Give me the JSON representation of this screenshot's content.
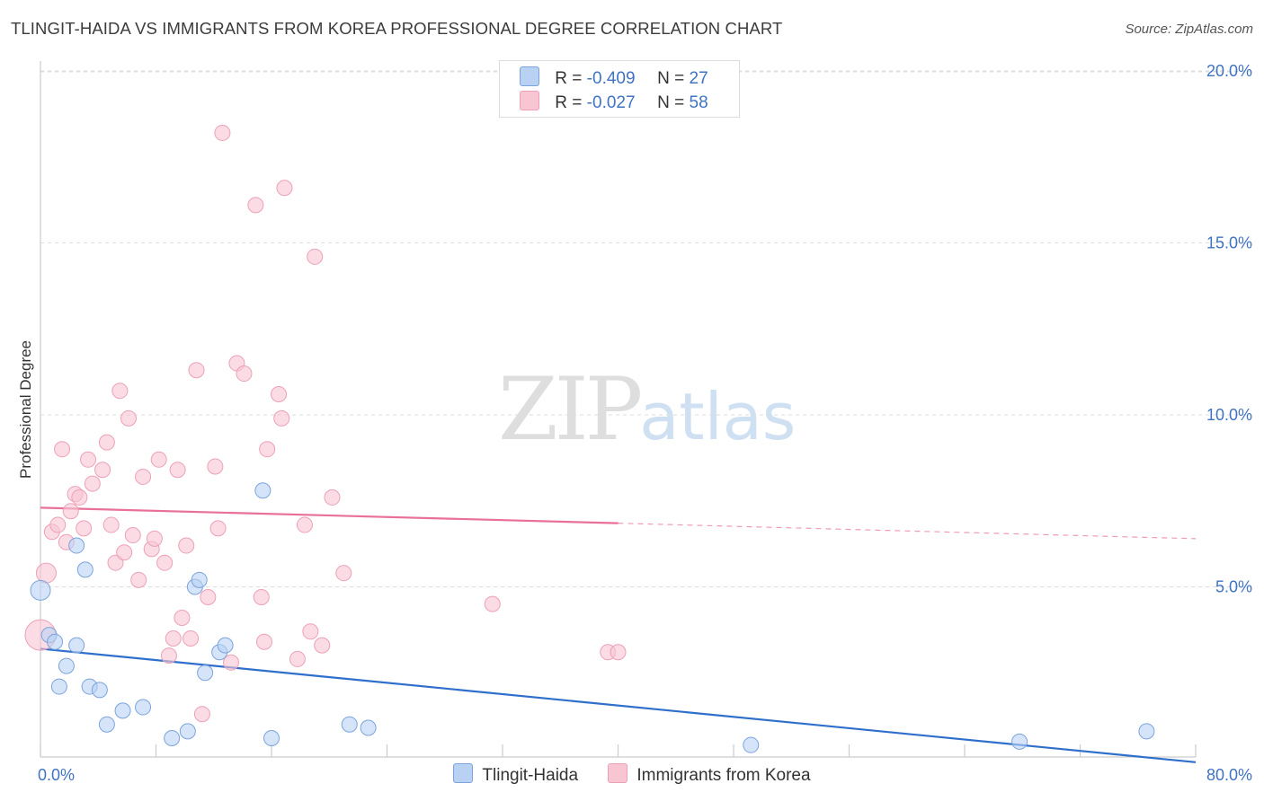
{
  "title": "TLINGIT-HAIDA VS IMMIGRANTS FROM KOREA PROFESSIONAL DEGREE CORRELATION CHART",
  "source": "Source: ZipAtlas.com",
  "watermark": {
    "zip": "ZIP",
    "atlas": "atlas"
  },
  "legend": [
    {
      "r_label": "R =",
      "r_value": "-0.409",
      "n_label": "N =",
      "n_value": "27"
    },
    {
      "r_label": "R =",
      "r_value": "-0.027",
      "n_label": "N =",
      "n_value": "58"
    }
  ],
  "colors": {
    "blue_fill": "#b9d2f3",
    "blue_stroke": "#7ba4dd",
    "blue_line": "#2f6fcc",
    "pink_fill": "#f8c5d3",
    "pink_stroke": "#eda0b6",
    "pink_line": "#e8709a",
    "tick": "#3f73c4",
    "grid": "#dddddd"
  },
  "chart_data": {
    "type": "scatter",
    "xlabel": "",
    "ylabel": "Professional Degree",
    "xlim": [
      0,
      80
    ],
    "ylim": [
      0,
      20
    ],
    "x_ticks": [
      "0.0%",
      "80.0%"
    ],
    "y_ticks": [
      {
        "value": 5,
        "label": "5.0%"
      },
      {
        "value": 10,
        "label": "10.0%"
      },
      {
        "value": 15,
        "label": "15.0%"
      },
      {
        "value": 20,
        "label": "20.0%"
      }
    ],
    "series": [
      {
        "name": "Tlingit-Haida",
        "color": "#b9d2f3",
        "trend": {
          "x": [
            0,
            80
          ],
          "y": [
            3.2,
            -0.1
          ],
          "solid_until": 80
        },
        "points": [
          [
            0,
            4.9
          ],
          [
            0.6,
            3.6
          ],
          [
            1,
            3.4
          ],
          [
            1.3,
            2.1
          ],
          [
            1.8,
            2.7
          ],
          [
            2.5,
            3.3
          ],
          [
            2.5,
            6.2
          ],
          [
            3.1,
            5.5
          ],
          [
            3.4,
            2.1
          ],
          [
            4.1,
            2.0
          ],
          [
            4.6,
            1.0
          ],
          [
            5.7,
            1.4
          ],
          [
            7.1,
            1.5
          ],
          [
            9.1,
            0.6
          ],
          [
            10.2,
            0.8
          ],
          [
            10.7,
            5.0
          ],
          [
            11.0,
            5.2
          ],
          [
            11.4,
            2.5
          ],
          [
            12.4,
            3.1
          ],
          [
            12.8,
            3.3
          ],
          [
            15.4,
            7.8
          ],
          [
            16.0,
            0.6
          ],
          [
            21.4,
            1.0
          ],
          [
            22.7,
            0.9
          ],
          [
            49.2,
            0.4
          ],
          [
            67.8,
            0.5
          ],
          [
            76.6,
            0.8
          ]
        ]
      },
      {
        "name": "Immigrants from Korea",
        "color": "#f8c5d3",
        "trend": {
          "x": [
            0,
            80
          ],
          "y": [
            7.3,
            6.4
          ],
          "solid_until": 40
        },
        "points": [
          [
            0,
            3.6
          ],
          [
            0.4,
            5.4
          ],
          [
            0.8,
            6.6
          ],
          [
            1.2,
            6.8
          ],
          [
            1.5,
            9.0
          ],
          [
            1.8,
            6.3
          ],
          [
            2.1,
            7.2
          ],
          [
            2.4,
            7.7
          ],
          [
            2.7,
            7.6
          ],
          [
            3.0,
            6.7
          ],
          [
            3.3,
            8.7
          ],
          [
            3.6,
            8.0
          ],
          [
            4.3,
            8.4
          ],
          [
            4.6,
            9.2
          ],
          [
            4.9,
            6.8
          ],
          [
            5.2,
            5.7
          ],
          [
            5.5,
            10.7
          ],
          [
            5.8,
            6.0
          ],
          [
            6.1,
            9.9
          ],
          [
            6.4,
            6.5
          ],
          [
            6.8,
            5.2
          ],
          [
            7.1,
            8.2
          ],
          [
            7.7,
            6.1
          ],
          [
            7.9,
            6.4
          ],
          [
            8.2,
            8.7
          ],
          [
            8.6,
            5.7
          ],
          [
            8.9,
            3.0
          ],
          [
            9.2,
            3.5
          ],
          [
            9.5,
            8.4
          ],
          [
            9.8,
            4.1
          ],
          [
            10.1,
            6.2
          ],
          [
            10.4,
            3.5
          ],
          [
            10.8,
            11.3
          ],
          [
            11.2,
            1.3
          ],
          [
            11.6,
            4.7
          ],
          [
            12.1,
            8.5
          ],
          [
            12.3,
            6.7
          ],
          [
            12.6,
            18.2
          ],
          [
            13.2,
            2.8
          ],
          [
            13.6,
            11.5
          ],
          [
            14.1,
            11.2
          ],
          [
            14.9,
            16.1
          ],
          [
            15.3,
            4.7
          ],
          [
            15.5,
            3.4
          ],
          [
            15.7,
            9.0
          ],
          [
            16.5,
            10.6
          ],
          [
            16.7,
            9.9
          ],
          [
            16.9,
            16.6
          ],
          [
            17.8,
            2.9
          ],
          [
            18.3,
            6.8
          ],
          [
            18.7,
            3.7
          ],
          [
            19.0,
            14.6
          ],
          [
            19.5,
            3.3
          ],
          [
            20.2,
            7.6
          ],
          [
            21.0,
            5.4
          ],
          [
            31.3,
            4.5
          ],
          [
            39.3,
            3.1
          ],
          [
            40.0,
            3.1
          ]
        ]
      }
    ]
  }
}
